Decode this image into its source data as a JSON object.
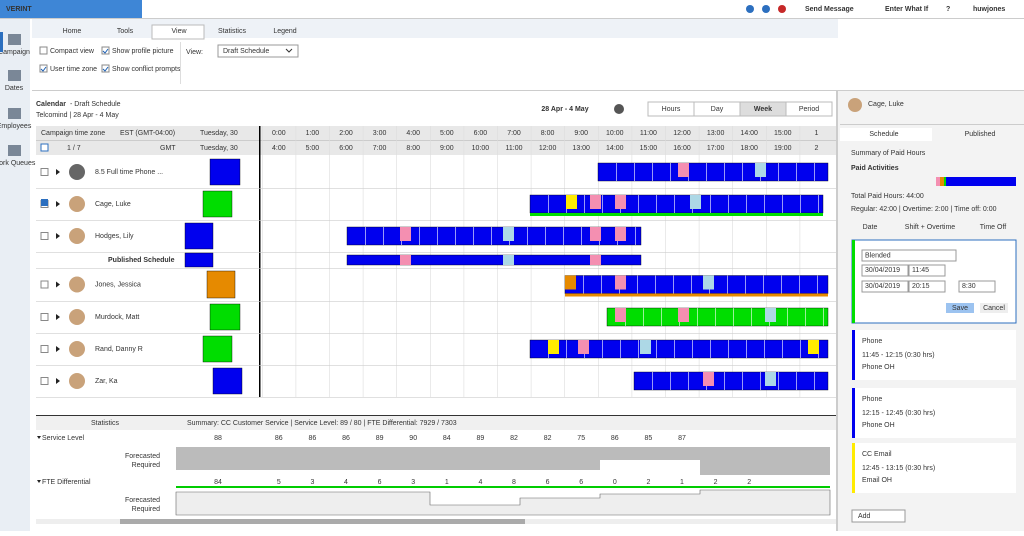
{
  "header": {
    "logo": "VERINT",
    "menu": [
      "Send Message",
      "Enter What If",
      "?",
      "huwjones"
    ]
  },
  "tabs": [
    "Home",
    "Tools",
    "View",
    "Statistics",
    "Legend"
  ],
  "ribbon": {
    "options": [
      "Compact view",
      "Show profile picture",
      "User time zone",
      "Show conflict prompts"
    ],
    "view_label": "View:",
    "view_value": "Draft Schedule"
  },
  "nav": [
    "Campaign",
    "Dates",
    "Employees",
    "Work Queues"
  ],
  "calendar": {
    "title": "Calendar",
    "title_suffix": "- Draft Schedule",
    "subtitle": "Telcomind | 28 Apr - 4 May",
    "range": "28 Apr - 4 May",
    "views": [
      "Hours",
      "Day",
      "Week",
      "Period"
    ],
    "tz_label": "Campaign time zone",
    "tz_value": "EST (GMT-04:00)",
    "day": "Tuesday, 30",
    "pager": "1 / 7",
    "gmt": "GMT",
    "times_local": [
      "0:00",
      "1:00",
      "2:00",
      "3:00",
      "4:00",
      "5:00",
      "6:00",
      "7:00",
      "8:00",
      "9:00",
      "10:00",
      "11:00",
      "12:00",
      "13:00",
      "14:00",
      "15:00",
      "1"
    ],
    "times_gmt": [
      "4:00",
      "5:00",
      "6:00",
      "7:00",
      "8:00",
      "9:00",
      "10:00",
      "11:00",
      "12:00",
      "13:00",
      "14:00",
      "15:00",
      "16:00",
      "17:00",
      "18:00",
      "19:00",
      "2"
    ],
    "rows": [
      "8.5 Full time Phone ...",
      "Cage, Luke",
      "Hodges, Lily",
      "Published Schedule",
      "Jones, Jessica",
      "Murdock, Matt",
      "Rand, Danny R",
      "Zar, Ka"
    ]
  },
  "statistics": {
    "title": "Statistics",
    "summary": "Summary: CC Customer Service | Service Level: 89 / 80 | FTE Differential: 7929 / 7303",
    "service_level": {
      "label": "Service Level",
      "values": [
        "88",
        "86",
        "86",
        "86",
        "89",
        "90",
        "84",
        "89",
        "82",
        "82",
        "75",
        "86",
        "85",
        "87"
      ]
    },
    "fte": {
      "label": "FTE Differential",
      "values": [
        "84",
        "5",
        "3",
        "4",
        "6",
        "3",
        "1",
        "4",
        "8",
        "6",
        "6",
        "0",
        "2",
        "1",
        "2",
        "2"
      ]
    },
    "forecasted": "Forecasted",
    "required": "Required"
  },
  "panel": {
    "name": "Cage, Luke",
    "tabs": [
      "Schedule",
      "Published"
    ],
    "summary_title": "Summary of Paid Hours",
    "paid_activities": "Paid Activities",
    "total": "Total Paid Hours: 44:00",
    "breakdown": "Regular: 42:00 | Overtime: 2:00 | Time off: 0:00",
    "columns": [
      "Date",
      "Shift + Overtime",
      "Time Off"
    ],
    "edit": {
      "activity": "Blended",
      "start_date": "30/04/2019",
      "start_time": "11:45",
      "end_date": "30/04/2019",
      "end_time": "20:15",
      "duration": "8:30",
      "save": "Save",
      "cancel": "Cancel"
    },
    "cards": [
      {
        "title": "Phone",
        "time": "11:45 - 12:15 (0:30 hrs)",
        "queue": "Phone OH"
      },
      {
        "title": "Phone",
        "time": "12:15 - 12:45 (0:30 hrs)",
        "queue": "Phone OH"
      },
      {
        "title": "CC Email",
        "time": "12:45 - 13:15 (0:30 hrs)",
        "queue": "Email OH"
      }
    ],
    "add": "Add"
  }
}
